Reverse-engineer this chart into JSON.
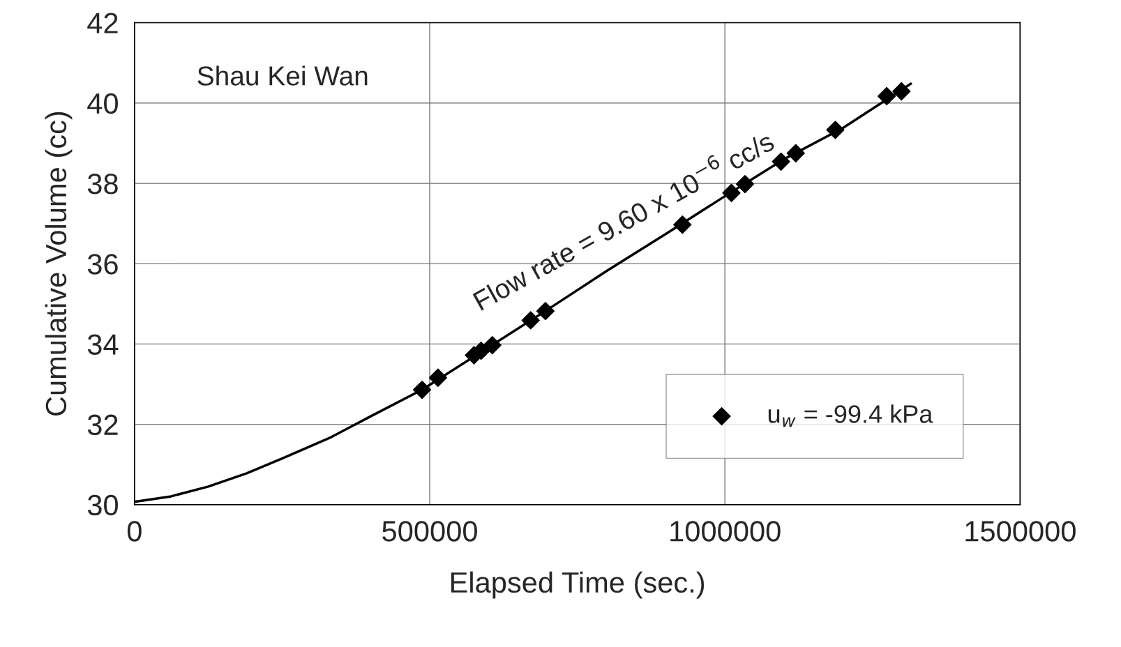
{
  "chart_data": {
    "type": "scatter",
    "xlabel": "Elapsed Time (sec.)",
    "ylabel": "Cumulative Volume (cc)",
    "xlim": [
      0,
      1500000
    ],
    "ylim": [
      30,
      42
    ],
    "xticks": [
      0,
      500000,
      1000000,
      1500000
    ],
    "yticks": [
      30,
      32,
      34,
      36,
      38,
      40,
      42
    ],
    "grid": true,
    "legend": "lower right",
    "annotations": [
      "Shau Kei Wan",
      "Flow rate = 9.60 x 10$^{−6}$ cc/s"
    ],
    "series": [
      {
        "type": "line",
        "color": "#000000",
        "marker": "none",
        "line_style": "solid",
        "x": [
          0,
          60000,
          125000,
          190000,
          250000,
          333000,
          400000,
          487000,
          600000,
          700000,
          800000,
          900000,
          1000000,
          1100000,
          1200000,
          1315000
        ],
        "values": [
          30.07,
          30.2,
          30.45,
          30.78,
          31.15,
          31.68,
          32.2,
          32.86,
          33.92,
          34.86,
          35.82,
          36.74,
          37.68,
          38.6,
          39.38,
          40.48
        ]
      },
      {
        "name": "u$_{w}$ = -99.4 kPa",
        "color": "#000000",
        "marker": "diamond",
        "x": [
          487000,
          514000,
          575000,
          587000,
          606000,
          671000,
          696000,
          928000,
          1011000,
          1034000,
          1095000,
          1120000,
          1187000,
          1274000,
          1299000
        ],
        "values": [
          32.86,
          33.16,
          33.72,
          33.83,
          33.97,
          34.59,
          34.82,
          36.97,
          37.76,
          37.98,
          38.54,
          38.75,
          39.33,
          40.17,
          40.29
        ]
      }
    ]
  }
}
